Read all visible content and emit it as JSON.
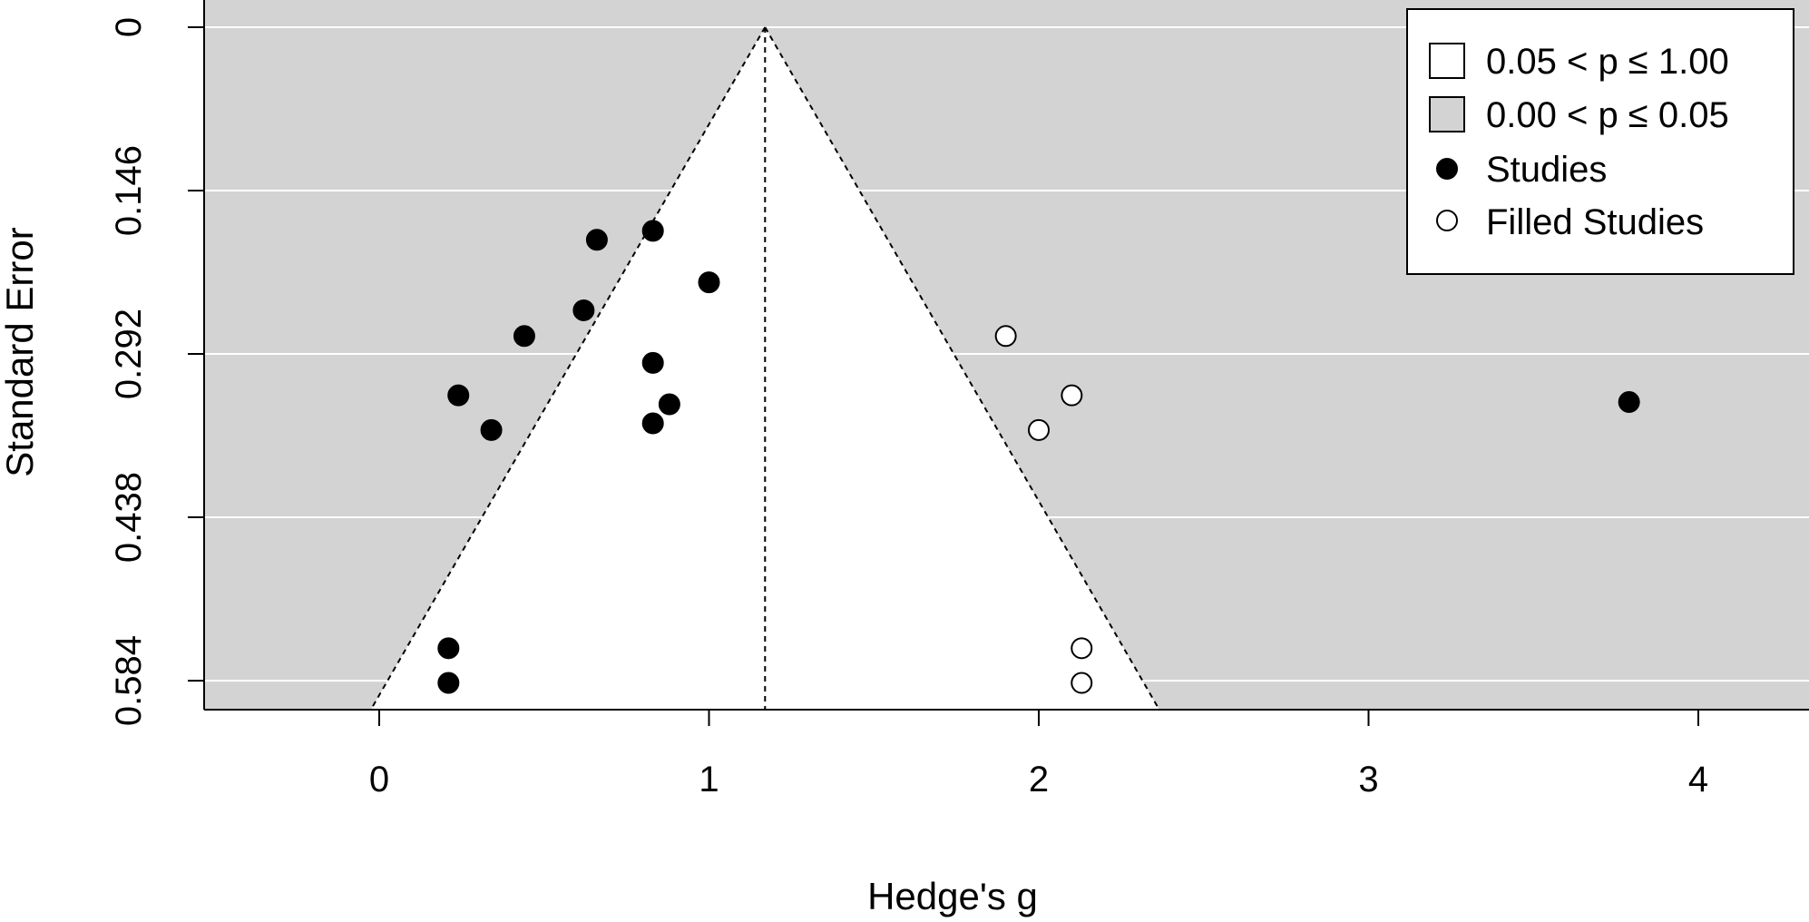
{
  "chart_data": {
    "type": "scatter",
    "title": "",
    "xlabel": "Hedge's g",
    "ylabel": "Standard Error",
    "xlim": [
      -0.52,
      4.35
    ],
    "ylim": [
      0,
      0.61
    ],
    "y_reversed": true,
    "x_ticks": [
      0,
      1,
      2,
      3,
      4
    ],
    "y_ticks": [
      0,
      0.146,
      0.292,
      0.438,
      0.584
    ],
    "y_tick_labels": [
      "0",
      "0.146",
      "0.292",
      "0.438",
      "0.584"
    ],
    "grid": "horizontal white lines at y ticks",
    "summary_effect": 1.17,
    "funnel_se_max": 0.61,
    "colors": {
      "background": "#d3d3d3",
      "funnel": "#ffffff",
      "grid": "#ffffff",
      "studies": "#000000",
      "filled_studies": "#ffffff"
    },
    "legend": {
      "position": "top-right",
      "entries": [
        {
          "label": "0.05 < p ≤ 1.00",
          "symbol": "square",
          "fill": "#ffffff"
        },
        {
          "label": "0.00 < p ≤ 0.05",
          "symbol": "square",
          "fill": "#d3d3d3"
        },
        {
          "label": "Studies",
          "symbol": "circle",
          "fill": "#000000"
        },
        {
          "label": "Filled Studies",
          "symbol": "circle",
          "fill": "#ffffff"
        }
      ]
    },
    "series": [
      {
        "name": "Studies",
        "points": [
          {
            "x": 0.66,
            "y": 0.19
          },
          {
            "x": 0.83,
            "y": 0.182
          },
          {
            "x": 1.0,
            "y": 0.228
          },
          {
            "x": 0.62,
            "y": 0.253
          },
          {
            "x": 0.44,
            "y": 0.276
          },
          {
            "x": 0.83,
            "y": 0.3
          },
          {
            "x": 0.24,
            "y": 0.329
          },
          {
            "x": 0.88,
            "y": 0.337
          },
          {
            "x": 0.34,
            "y": 0.36
          },
          {
            "x": 0.83,
            "y": 0.354
          },
          {
            "x": 0.21,
            "y": 0.555
          },
          {
            "x": 0.21,
            "y": 0.586
          },
          {
            "x": 3.79,
            "y": 0.335
          }
        ]
      },
      {
        "name": "Filled Studies",
        "points": [
          {
            "x": 1.9,
            "y": 0.276
          },
          {
            "x": 2.1,
            "y": 0.329
          },
          {
            "x": 2.0,
            "y": 0.36
          },
          {
            "x": 2.13,
            "y": 0.555
          },
          {
            "x": 2.13,
            "y": 0.586
          }
        ]
      }
    ]
  }
}
